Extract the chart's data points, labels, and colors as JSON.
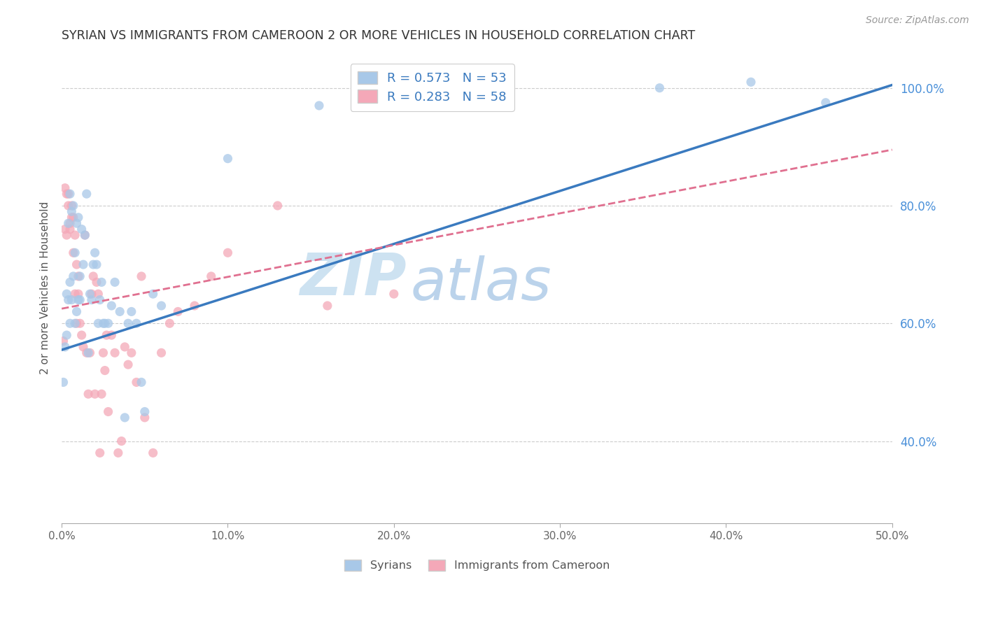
{
  "title": "SYRIAN VS IMMIGRANTS FROM CAMEROON 2 OR MORE VEHICLES IN HOUSEHOLD CORRELATION CHART",
  "source": "Source: ZipAtlas.com",
  "ylabel": "2 or more Vehicles in Household",
  "xlim": [
    0.0,
    0.5
  ],
  "ylim": [
    0.26,
    1.06
  ],
  "legend_label1": "R = 0.573   N = 53",
  "legend_label2": "R = 0.283   N = 58",
  "color_syrians": "#a8c8e8",
  "color_cameroon": "#f4a8b8",
  "color_line_syrians": "#3a7abf",
  "color_line_cameroon": "#e07090",
  "watermark_zip": "ZIP",
  "watermark_atlas": "atlas",
  "syrians_x": [
    0.001,
    0.002,
    0.003,
    0.003,
    0.004,
    0.004,
    0.005,
    0.005,
    0.005,
    0.006,
    0.006,
    0.007,
    0.007,
    0.008,
    0.008,
    0.009,
    0.009,
    0.01,
    0.01,
    0.011,
    0.011,
    0.012,
    0.013,
    0.014,
    0.015,
    0.016,
    0.017,
    0.018,
    0.019,
    0.02,
    0.021,
    0.022,
    0.023,
    0.024,
    0.025,
    0.026,
    0.028,
    0.03,
    0.032,
    0.035,
    0.038,
    0.04,
    0.042,
    0.045,
    0.048,
    0.05,
    0.055,
    0.06,
    0.1,
    0.155,
    0.36,
    0.415,
    0.46
  ],
  "syrians_y": [
    0.5,
    0.56,
    0.65,
    0.58,
    0.64,
    0.77,
    0.67,
    0.82,
    0.6,
    0.64,
    0.79,
    0.68,
    0.8,
    0.72,
    0.6,
    0.77,
    0.62,
    0.64,
    0.78,
    0.68,
    0.64,
    0.76,
    0.7,
    0.75,
    0.82,
    0.55,
    0.65,
    0.64,
    0.7,
    0.72,
    0.7,
    0.6,
    0.64,
    0.67,
    0.6,
    0.6,
    0.6,
    0.63,
    0.67,
    0.62,
    0.44,
    0.6,
    0.62,
    0.6,
    0.5,
    0.45,
    0.65,
    0.63,
    0.88,
    0.97,
    1.0,
    1.01,
    0.975
  ],
  "cameroon_x": [
    0.001,
    0.002,
    0.002,
    0.003,
    0.003,
    0.004,
    0.004,
    0.005,
    0.005,
    0.006,
    0.006,
    0.007,
    0.007,
    0.008,
    0.008,
    0.009,
    0.009,
    0.01,
    0.01,
    0.011,
    0.012,
    0.013,
    0.014,
    0.015,
    0.016,
    0.017,
    0.018,
    0.019,
    0.02,
    0.021,
    0.022,
    0.023,
    0.024,
    0.025,
    0.026,
    0.027,
    0.028,
    0.03,
    0.032,
    0.034,
    0.036,
    0.038,
    0.04,
    0.042,
    0.045,
    0.048,
    0.05,
    0.055,
    0.06,
    0.065,
    0.07,
    0.08,
    0.09,
    0.1,
    0.13,
    0.16,
    0.2,
    0.24
  ],
  "cameroon_y": [
    0.57,
    0.83,
    0.76,
    0.82,
    0.75,
    0.82,
    0.8,
    0.76,
    0.77,
    0.8,
    0.78,
    0.78,
    0.72,
    0.75,
    0.65,
    0.6,
    0.7,
    0.65,
    0.68,
    0.6,
    0.58,
    0.56,
    0.75,
    0.55,
    0.48,
    0.55,
    0.65,
    0.68,
    0.48,
    0.67,
    0.65,
    0.38,
    0.48,
    0.55,
    0.52,
    0.58,
    0.45,
    0.58,
    0.55,
    0.38,
    0.4,
    0.56,
    0.53,
    0.55,
    0.5,
    0.68,
    0.44,
    0.38,
    0.55,
    0.6,
    0.62,
    0.63,
    0.68,
    0.72,
    0.8,
    0.63,
    0.65,
    1.02
  ],
  "sy_line_x0": 0.0,
  "sy_line_y0": 0.555,
  "sy_line_x1": 0.5,
  "sy_line_y1": 1.005,
  "cam_line_x0": 0.0,
  "cam_line_y0": 0.625,
  "cam_line_x1": 0.5,
  "cam_line_y1": 0.895
}
